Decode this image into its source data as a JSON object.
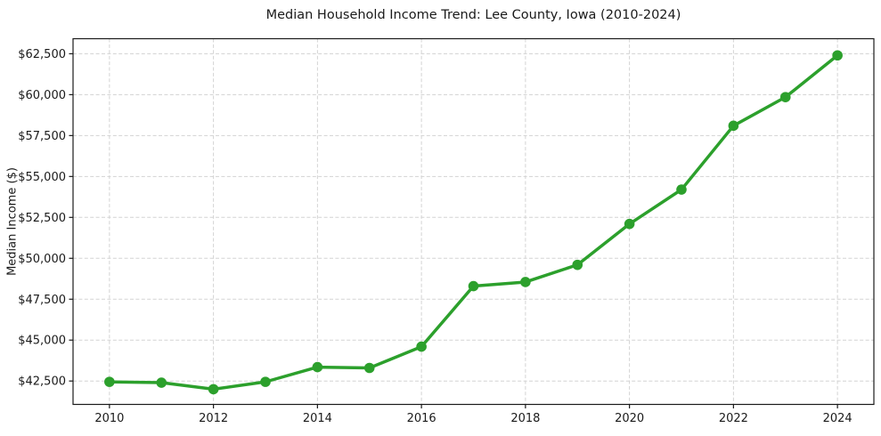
{
  "chart_data": {
    "type": "line",
    "title": "Median Household Income Trend: Lee County, Iowa (2010-2024)",
    "xlabel": "",
    "ylabel": "Median Income ($)",
    "x": [
      2010,
      2011,
      2012,
      2013,
      2014,
      2015,
      2016,
      2017,
      2018,
      2019,
      2020,
      2021,
      2022,
      2023,
      2024
    ],
    "series": [
      {
        "name": "Median Household Income",
        "color": "#2ca02c",
        "values": [
          42450,
          42400,
          42000,
          42450,
          43350,
          43300,
          44600,
          48300,
          48550,
          49600,
          52100,
          54200,
          58100,
          59850,
          62400
        ]
      }
    ],
    "xlim": [
      2009.3,
      2024.7
    ],
    "ylim": [
      41070,
      63420
    ],
    "x_ticks": [
      2010,
      2012,
      2014,
      2016,
      2018,
      2020,
      2022,
      2024
    ],
    "y_ticks": [
      42500,
      45000,
      47500,
      50000,
      52500,
      55000,
      57500,
      60000,
      62500
    ],
    "y_tick_prefix": "$",
    "grid": true,
    "grid_style": "dashed",
    "legend": false,
    "marker": "circle"
  },
  "style": {
    "line_color": "#2ca02c",
    "marker_color": "#2ca02c",
    "grid_color": "#d3d3d3",
    "spine_color": "#1a1a1a",
    "tick_color": "#1a1a1a",
    "text_color": "#1a1a1a",
    "background": "#ffffff"
  }
}
